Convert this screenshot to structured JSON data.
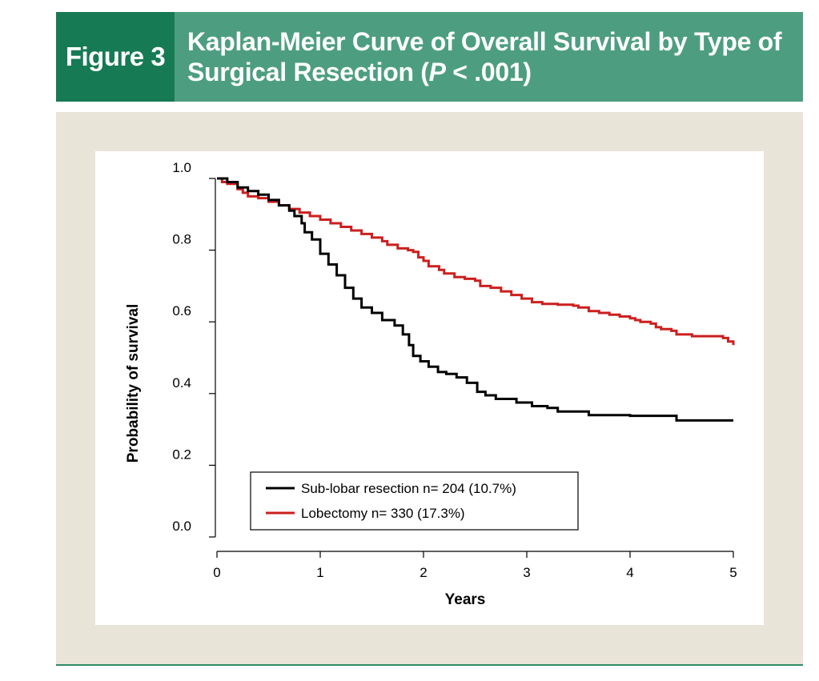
{
  "figure": {
    "label": "Figure 3",
    "title_main": "Kaplan-Meier Curve of Overall Survival by Type of Surgical Resection (",
    "title_p": "P",
    "title_rest": " < .001)"
  },
  "colors": {
    "label_bg": "#167a55",
    "title_bg": "#4d9e80",
    "panel_bg": "#e9e4d8",
    "series_sublobar": "#000000",
    "series_lobectomy": "#cc1f1f"
  },
  "chart_data": {
    "type": "line",
    "step": true,
    "title": "",
    "xlabel": "Years",
    "ylabel": "Probability of survival",
    "xlim": [
      0,
      5
    ],
    "ylim": [
      0,
      1
    ],
    "xticks": [
      "0",
      "1",
      "2",
      "3",
      "4",
      "5"
    ],
    "yticks": [
      "0.0",
      "0.2",
      "0.4",
      "0.6",
      "0.8",
      "1.0"
    ],
    "grid": false,
    "legend_position": "bottom-center",
    "series": [
      {
        "name": "Sub-lobar resection n= 204 (10.7%)",
        "color": "#000000",
        "points": [
          [
            0,
            1.0
          ],
          [
            0.1,
            0.99
          ],
          [
            0.2,
            0.975
          ],
          [
            0.3,
            0.965
          ],
          [
            0.4,
            0.955
          ],
          [
            0.5,
            0.94
          ],
          [
            0.6,
            0.925
          ],
          [
            0.7,
            0.91
          ],
          [
            0.75,
            0.895
          ],
          [
            0.82,
            0.875
          ],
          [
            0.85,
            0.85
          ],
          [
            0.92,
            0.83
          ],
          [
            1.0,
            0.79
          ],
          [
            1.08,
            0.76
          ],
          [
            1.16,
            0.73
          ],
          [
            1.24,
            0.695
          ],
          [
            1.32,
            0.665
          ],
          [
            1.4,
            0.64
          ],
          [
            1.5,
            0.625
          ],
          [
            1.6,
            0.605
          ],
          [
            1.72,
            0.59
          ],
          [
            1.8,
            0.565
          ],
          [
            1.86,
            0.535
          ],
          [
            1.9,
            0.505
          ],
          [
            1.97,
            0.49
          ],
          [
            2.05,
            0.475
          ],
          [
            2.14,
            0.46
          ],
          [
            2.22,
            0.455
          ],
          [
            2.32,
            0.445
          ],
          [
            2.42,
            0.43
          ],
          [
            2.52,
            0.405
          ],
          [
            2.6,
            0.395
          ],
          [
            2.7,
            0.385
          ],
          [
            2.9,
            0.375
          ],
          [
            3.05,
            0.365
          ],
          [
            3.2,
            0.36
          ],
          [
            3.3,
            0.35
          ],
          [
            3.6,
            0.34
          ],
          [
            4.0,
            0.338
          ],
          [
            4.45,
            0.325
          ],
          [
            5.0,
            0.325
          ]
        ]
      },
      {
        "name": "Lobectomy n= 330 (17.3%)",
        "color": "#cc1f1f",
        "points": [
          [
            0,
            1.0
          ],
          [
            0.05,
            0.99
          ],
          [
            0.1,
            0.985
          ],
          [
            0.2,
            0.97
          ],
          [
            0.25,
            0.96
          ],
          [
            0.3,
            0.95
          ],
          [
            0.4,
            0.945
          ],
          [
            0.5,
            0.935
          ],
          [
            0.6,
            0.925
          ],
          [
            0.7,
            0.915
          ],
          [
            0.8,
            0.905
          ],
          [
            0.9,
            0.895
          ],
          [
            1.0,
            0.885
          ],
          [
            1.1,
            0.875
          ],
          [
            1.2,
            0.865
          ],
          [
            1.3,
            0.855
          ],
          [
            1.4,
            0.845
          ],
          [
            1.5,
            0.835
          ],
          [
            1.6,
            0.825
          ],
          [
            1.65,
            0.815
          ],
          [
            1.75,
            0.805
          ],
          [
            1.85,
            0.8
          ],
          [
            1.9,
            0.795
          ],
          [
            1.95,
            0.78
          ],
          [
            2.0,
            0.77
          ],
          [
            2.05,
            0.755
          ],
          [
            2.15,
            0.745
          ],
          [
            2.2,
            0.735
          ],
          [
            2.3,
            0.725
          ],
          [
            2.4,
            0.72
          ],
          [
            2.5,
            0.715
          ],
          [
            2.55,
            0.7
          ],
          [
            2.65,
            0.695
          ],
          [
            2.75,
            0.685
          ],
          [
            2.85,
            0.675
          ],
          [
            2.95,
            0.665
          ],
          [
            3.05,
            0.655
          ],
          [
            3.15,
            0.65
          ],
          [
            3.3,
            0.648
          ],
          [
            3.45,
            0.645
          ],
          [
            3.5,
            0.64
          ],
          [
            3.6,
            0.63
          ],
          [
            3.7,
            0.625
          ],
          [
            3.8,
            0.62
          ],
          [
            3.9,
            0.615
          ],
          [
            4.0,
            0.61
          ],
          [
            4.05,
            0.605
          ],
          [
            4.1,
            0.6
          ],
          [
            4.2,
            0.595
          ],
          [
            4.25,
            0.585
          ],
          [
            4.3,
            0.58
          ],
          [
            4.4,
            0.575
          ],
          [
            4.45,
            0.565
          ],
          [
            4.6,
            0.56
          ],
          [
            4.9,
            0.555
          ],
          [
            4.95,
            0.545
          ],
          [
            5.0,
            0.535
          ]
        ]
      }
    ]
  }
}
